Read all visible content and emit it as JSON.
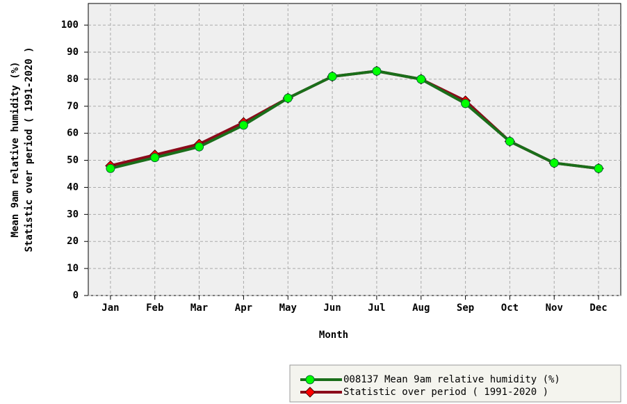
{
  "chart_data": {
    "type": "line",
    "ylabel": [
      "Mean 9am relative humidity (%)",
      "Statistic over period ( 1991-2020  )"
    ],
    "xlabel": "Month",
    "categories": [
      "Jan",
      "Feb",
      "Mar",
      "Apr",
      "May",
      "Jun",
      "Jul",
      "Aug",
      "Sep",
      "Oct",
      "Nov",
      "Dec"
    ],
    "series": [
      {
        "name": "Statistic over period ( 1991-2020  )",
        "color": "#8b0a1a",
        "marker": "diamond",
        "marker_color": "#ff0000",
        "values": [
          48,
          52,
          56,
          64,
          73,
          81,
          83,
          80,
          72,
          57,
          49,
          47
        ]
      },
      {
        "name": "008137 Mean 9am relative humidity (%)",
        "color": "#1a6e1a",
        "marker": "circle",
        "marker_color": "#00ff00",
        "values": [
          47,
          51,
          55,
          63,
          73,
          81,
          83,
          80,
          71,
          57,
          49,
          47
        ]
      }
    ],
    "legend_order": [
      1,
      0
    ],
    "ylim": [
      0,
      108
    ],
    "yticks": [
      0,
      10,
      20,
      30,
      40,
      50,
      60,
      70,
      80,
      90,
      100
    ],
    "grid": true
  }
}
